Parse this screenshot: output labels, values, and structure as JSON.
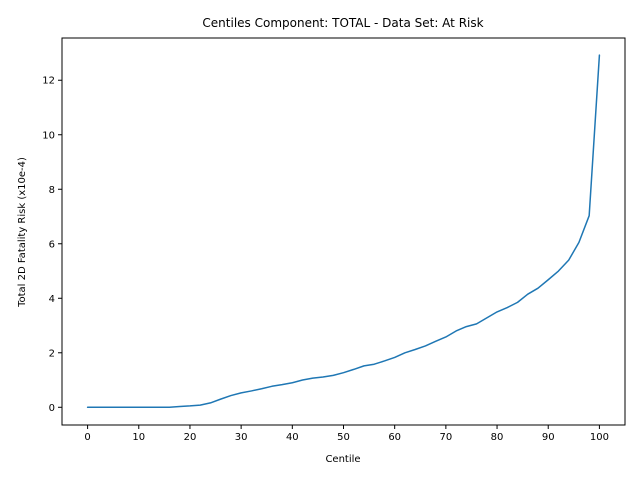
{
  "chart_data": {
    "type": "line",
    "title": "Centiles Component: TOTAL - Data Set: At Risk",
    "xlabel": "Centile",
    "ylabel": "Total 2D Fatality Risk (x10e-4)",
    "xlim": [
      -5,
      105
    ],
    "ylim": [
      -0.65,
      13.55
    ],
    "xticks": [
      0,
      10,
      20,
      30,
      40,
      50,
      60,
      70,
      80,
      90,
      100
    ],
    "yticks": [
      0,
      2,
      4,
      6,
      8,
      10,
      12
    ],
    "grid": false,
    "legend": "none",
    "color": "#1f77b4",
    "series": [
      {
        "x": [
          0,
          2,
          4,
          6,
          8,
          10,
          12,
          14,
          16,
          18,
          20,
          22,
          24,
          26,
          28,
          30,
          32,
          34,
          36,
          38,
          40,
          42,
          44,
          46,
          48,
          50,
          52,
          54,
          56,
          58,
          60,
          62,
          64,
          66,
          68,
          70,
          72,
          74,
          76,
          78,
          80,
          82,
          84,
          86,
          88,
          90,
          92,
          94,
          96,
          98,
          100
        ],
        "values": [
          0,
          0,
          0,
          0,
          0,
          0,
          0,
          0,
          0,
          0.03,
          0.05,
          0.08,
          0.16,
          0.3,
          0.43,
          0.53,
          0.6,
          0.68,
          0.77,
          0.83,
          0.9,
          1.0,
          1.07,
          1.11,
          1.17,
          1.27,
          1.39,
          1.52,
          1.58,
          1.7,
          1.83,
          2.0,
          2.12,
          2.25,
          2.42,
          2.58,
          2.8,
          2.96,
          3.06,
          3.28,
          3.5,
          3.66,
          3.85,
          4.15,
          4.37,
          4.68,
          5.0,
          5.4,
          6.05,
          7.03,
          12.92
        ]
      }
    ]
  }
}
